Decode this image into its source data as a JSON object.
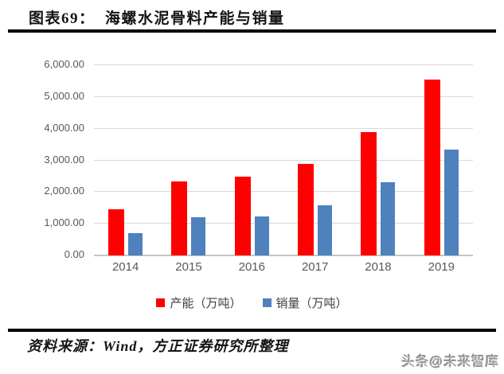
{
  "header": {
    "title": "图表69：  海螺水泥骨料产能与销量"
  },
  "chart_data": {
    "type": "bar",
    "title": "海螺水泥骨料产能与销量",
    "categories": [
      "2014",
      "2015",
      "2016",
      "2017",
      "2018",
      "2019"
    ],
    "series": [
      {
        "name": "产能（万吨）",
        "color": "#fe0000",
        "values": [
          1450,
          2330,
          2480,
          2870,
          3870,
          5520
        ]
      },
      {
        "name": "销量（万吨）",
        "color": "#4f81bd",
        "values": [
          710,
          1190,
          1220,
          1570,
          2300,
          3330
        ]
      }
    ],
    "ylim": [
      0,
      6000
    ],
    "ytick_step": 1000,
    "ytick_labels": [
      "0.00",
      "1,000.00",
      "2,000.00",
      "3,000.00",
      "4,000.00",
      "5,000.00",
      "6,000.00"
    ],
    "xlabel": "",
    "ylabel": "",
    "grid": true,
    "legend_position": "bottom",
    "axis_label_color": "#595959",
    "gridline_color": "#d9d9d9"
  },
  "footer": {
    "source": "资料来源：Wind，方正证券研究所整理",
    "watermark": "头条@未来智库"
  }
}
